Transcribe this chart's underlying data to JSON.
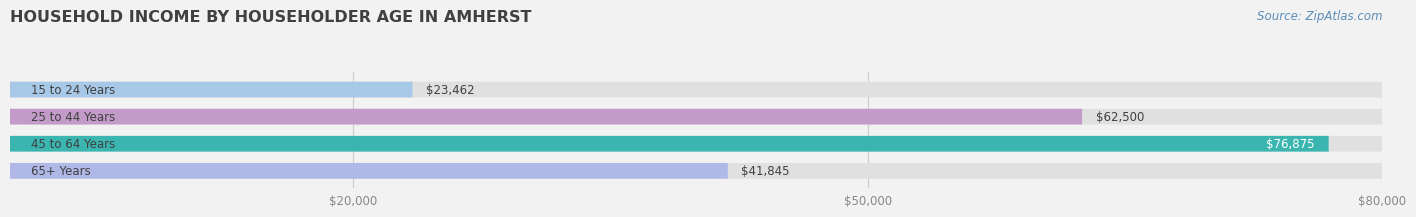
{
  "title": "HOUSEHOLD INCOME BY HOUSEHOLDER AGE IN AMHERST",
  "source": "Source: ZipAtlas.com",
  "categories": [
    "15 to 24 Years",
    "25 to 44 Years",
    "45 to 64 Years",
    "65+ Years"
  ],
  "values": [
    23462,
    62500,
    76875,
    41845
  ],
  "bar_colors": [
    "#a8c8e8",
    "#c39bc9",
    "#3ab5b0",
    "#b0b8e8"
  ],
  "label_colors": [
    "#555555",
    "#555555",
    "#ffffff",
    "#555555"
  ],
  "value_labels": [
    "$23,462",
    "$62,500",
    "$76,875",
    "$41,845"
  ],
  "xmin": 0,
  "xmax": 80000,
  "xticks": [
    20000,
    50000,
    80000
  ],
  "xtick_labels": [
    "$20,000",
    "$50,000",
    "$80,000"
  ],
  "background_color": "#f2f2f2",
  "bar_background_color": "#e0e0e0",
  "title_color": "#404040",
  "source_color": "#5b8db8",
  "title_fontsize": 11.5,
  "source_fontsize": 8.5,
  "label_fontsize": 8.5,
  "value_fontsize": 8.5,
  "tick_fontsize": 8.5,
  "bar_height": 0.58
}
